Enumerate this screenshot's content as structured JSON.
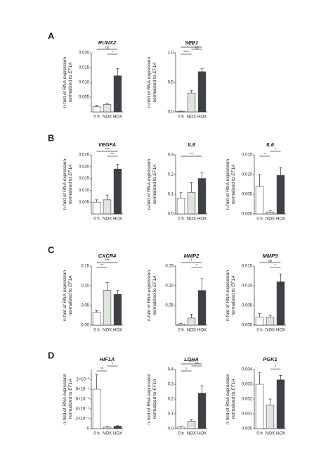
{
  "panel_labels": [
    "A",
    "B",
    "C",
    "D"
  ],
  "chart_data": [
    {
      "type": "bar",
      "title": "RUNX2",
      "ylabel": "n-fold of RNA expression",
      "ylabel2": "normalized to ",
      "ylabel_gene": "EF1A",
      "categories": [
        "0 h",
        "NOX",
        "HOX"
      ],
      "values": [
        0.0018,
        0.0025,
        0.0122
      ],
      "errors": [
        0.0004,
        0.0005,
        0.0025
      ],
      "colors": [
        "#ffffff",
        "#dde5dc",
        "#3d4147"
      ],
      "ylim": [
        0,
        0.02
      ],
      "yticks": [
        {
          "value": 0.005,
          "label": "0.005"
        },
        {
          "value": 0.01,
          "label": "0.010"
        },
        {
          "value": 0.015,
          "label": "0.015"
        },
        {
          "value": 0.02,
          "label": "0.020"
        }
      ],
      "annotations": [
        {
          "text": "*",
          "groups": [
            1,
            2
          ]
        },
        {
          "text": "ns",
          "groups": [
            0,
            2
          ]
        }
      ]
    },
    {
      "type": "bar",
      "title": "SPP1",
      "ylabel": "n-fold of RNA expression",
      "ylabel2": "normalized to ",
      "ylabel_gene": "EF1A",
      "categories": [
        "0 h",
        "NOX",
        "HOX"
      ],
      "values": [
        0.01,
        0.32,
        0.68
      ],
      "errors": [
        0.005,
        0.04,
        0.05
      ],
      "colors": [
        "#ffffff",
        "#dde5dc",
        "#3d4147"
      ],
      "ylim": [
        0,
        1.0
      ],
      "yticks": [
        {
          "value": 0,
          "label": "0.0"
        },
        {
          "value": 0.5,
          "label": "0.5"
        },
        {
          "value": 1,
          "label": "1.0"
        }
      ],
      "annotations": [
        {
          "text": "****",
          "groups": [
            0,
            1
          ]
        },
        {
          "text": "ns",
          "groups": [
            1,
            2
          ]
        },
        {
          "text": "****",
          "groups": [
            0,
            2
          ]
        }
      ]
    },
    {
      "type": "bar",
      "title": "VEGFA",
      "ylabel": "n-fold of RNA expression",
      "ylabel2": "normalized to ",
      "ylabel_gene": "EF1A",
      "categories": [
        "0 h",
        "NOX",
        "HOX"
      ],
      "values": [
        0.005,
        0.006,
        0.019
      ],
      "errors": [
        0.001,
        0.002,
        0.002
      ],
      "colors": [
        "#ffffff",
        "#dde5dc",
        "#3d4147"
      ],
      "ylim": [
        0,
        0.025
      ],
      "yticks": [
        {
          "value": 0.005,
          "label": "0.005"
        },
        {
          "value": 0.01,
          "label": "0.010"
        },
        {
          "value": 0.015,
          "label": "0.015"
        },
        {
          "value": 0.02,
          "label": "0.020"
        },
        {
          "value": 0.025,
          "label": "0.025"
        }
      ],
      "annotations": [
        {
          "text": "**",
          "groups": [
            1,
            2
          ]
        },
        {
          "text": "***",
          "groups": [
            0,
            2
          ]
        }
      ]
    },
    {
      "type": "bar",
      "title": "IL8",
      "ylabel": "n-fold of RNA expression",
      "ylabel2": "normalized to ",
      "ylabel_gene": "EF1A",
      "categories": [
        "0 h",
        "NOX",
        "HOX"
      ],
      "values": [
        0.08,
        0.11,
        0.18
      ],
      "errors": [
        0.03,
        0.05,
        0.03
      ],
      "colors": [
        "#ffffff",
        "#dde5dc",
        "#3d4147"
      ],
      "ylim": [
        0,
        0.3
      ],
      "yticks": [
        {
          "value": 0,
          "label": "0.0"
        },
        0.1,
        0.2,
        0.3
      ],
      "annotations": [
        {
          "text": "**",
          "groups": [
            0,
            2
          ]
        }
      ]
    },
    {
      "type": "bar",
      "title": "IL6",
      "ylabel": "n-fold of RNA expression",
      "ylabel2": "normalized to ",
      "ylabel_gene": "EF1A",
      "categories": [
        "0 h",
        "NOX",
        "HOX"
      ],
      "values": [
        0.007,
        0.0005,
        0.0098
      ],
      "errors": [
        0.003,
        0.0003,
        0.002
      ],
      "colors": [
        "#ffffff",
        "#dde5dc",
        "#3d4147"
      ],
      "ylim": [
        0,
        0.015
      ],
      "yticks": [
        {
          "value": 0,
          "label": "0.000"
        },
        0.005,
        {
          "value": 0.01,
          "label": "0.010"
        },
        0.015
      ],
      "annotations": [
        {
          "text": "*",
          "groups": [
            0,
            1
          ]
        },
        {
          "text": "*",
          "groups": [
            1,
            2
          ]
        }
      ]
    },
    {
      "type": "bar",
      "title": "CXCR4",
      "ylabel": "n-fold of RNA expression",
      "ylabel2": "normalized to ",
      "ylabel_gene": "EF1A",
      "categories": [
        "0 h",
        "NOX",
        "HOX"
      ],
      "values": [
        0.033,
        0.088,
        0.078
      ],
      "errors": [
        0.004,
        0.02,
        0.01
      ],
      "colors": [
        "#ffffff",
        "#dde5dc",
        "#3d4147"
      ],
      "ylim": [
        0,
        0.15
      ],
      "yticks": [
        {
          "value": 0,
          "label": "0.00"
        },
        0.05,
        {
          "value": 0.1,
          "label": "0.10"
        },
        0.15
      ],
      "annotations": [
        {
          "text": "**",
          "groups": [
            0,
            1
          ]
        },
        {
          "text": "***",
          "groups": [
            0,
            2
          ]
        }
      ]
    },
    {
      "type": "bar",
      "title": "MMP2",
      "ylabel": "n-fold of RNA expression",
      "ylabel2": "normalized to ",
      "ylabel_gene": "EF1A",
      "categories": [
        "0 h",
        "NOX",
        "HOX"
      ],
      "values": [
        0.003,
        0.018,
        0.088
      ],
      "errors": [
        0.001,
        0.01,
        0.03
      ],
      "colors": [
        "#ffffff",
        "#dde5dc",
        "#3d4147"
      ],
      "ylim": [
        0,
        0.15
      ],
      "yticks": [
        0.05,
        {
          "value": 0.1,
          "label": "0.10"
        },
        0.15
      ],
      "annotations": [
        {
          "text": "*",
          "groups": [
            1,
            2
          ]
        },
        {
          "text": "*",
          "groups": [
            0,
            2
          ]
        }
      ]
    },
    {
      "type": "bar",
      "title": "MMP9",
      "ylabel": "n-fold of RNA expression",
      "ylabel2": "normalized to ",
      "ylabel_gene": "EF1A",
      "categories": [
        "0 h",
        "NOX",
        "HOX"
      ],
      "values": [
        0.002,
        0.002,
        0.011
      ],
      "errors": [
        0.001,
        0.0005,
        0.002
      ],
      "colors": [
        "#ffffff",
        "#dde5dc",
        "#3d4147"
      ],
      "ylim": [
        0,
        0.015
      ],
      "yticks": [
        {
          "value": 0,
          "label": "0.000"
        },
        0.005,
        {
          "value": 0.01,
          "label": "0.010"
        },
        0.015
      ],
      "annotations": [
        {
          "text": "*",
          "groups": [
            1,
            2
          ]
        },
        {
          "text": "ns",
          "groups": [
            0,
            2
          ]
        }
      ]
    },
    {
      "type": "bar",
      "title": "HIF1A",
      "ylabel": "n-fold of RNA expression",
      "ylabel2": "normalized to ",
      "ylabel_gene": "EF1A",
      "categories": [
        "0 h",
        "NOX",
        "HOX"
      ],
      "values": [
        0.0008,
        3e-05,
        5e-05
      ],
      "errors": [
        0.0003,
        1e-05,
        1e-05
      ],
      "colors": [
        "#ffffff",
        "#dde5dc",
        "#3d4147"
      ],
      "ylim": [
        0,
        0.0012
      ],
      "yticks": [
        {
          "value": 0,
          "label": "0"
        },
        {
          "value": 0.0002,
          "label": "2×10⁻⁴"
        },
        {
          "value": 0.0004,
          "label": "4×10⁻⁴"
        },
        {
          "value": 0.0006,
          "label": "6×10⁻⁴"
        },
        {
          "value": 0.0008,
          "label": "8×10⁻⁴"
        },
        {
          "value": 0.001,
          "label": "1×10⁻³"
        }
      ],
      "annotations": [
        {
          "text": "**",
          "groups": [
            0,
            1
          ]
        },
        {
          "text": "*",
          "groups": [
            1,
            2
          ]
        }
      ]
    },
    {
      "type": "bar",
      "title": "LDHA",
      "ylabel": "n-fold of RNA expression",
      "ylabel2": "normalized to ",
      "ylabel_gene": "EF1A",
      "categories": [
        "0 h",
        "NOX",
        "HOX"
      ],
      "values": [
        0.01,
        0.05,
        0.24
      ],
      "errors": [
        0.003,
        0.01,
        0.05
      ],
      "colors": [
        "#ffffff",
        "#dde5dc",
        "#3d4147"
      ],
      "ylim": [
        0,
        0.4
      ],
      "yticks": [
        {
          "value": 0,
          "label": "0.0"
        },
        0.1,
        0.2,
        0.3,
        0.4
      ],
      "annotations": [
        {
          "text": "*",
          "groups": [
            0,
            1
          ]
        },
        {
          "text": "***",
          "groups": [
            1,
            2
          ]
        },
        {
          "text": "****",
          "groups": [
            0,
            2
          ]
        }
      ]
    },
    {
      "type": "bar",
      "title": "PGK1",
      "ylabel": "n-fold of RNA expression",
      "ylabel2": "normalized to ",
      "ylabel_gene": "EF1A",
      "categories": [
        "0 h",
        "NOX",
        "HOX"
      ],
      "values": [
        0.003,
        0.0016,
        0.0033
      ],
      "errors": [
        0.0008,
        0.0004,
        0.0003
      ],
      "colors": [
        "#ffffff",
        "#dde5dc",
        "#3d4147"
      ],
      "ylim": [
        0,
        0.004
      ],
      "yticks": [
        {
          "value": 0,
          "label": "0.000"
        },
        0.001,
        0.002,
        0.003,
        0.004
      ],
      "annotations": [
        {
          "text": "*",
          "groups": [
            1,
            2
          ]
        }
      ]
    }
  ]
}
